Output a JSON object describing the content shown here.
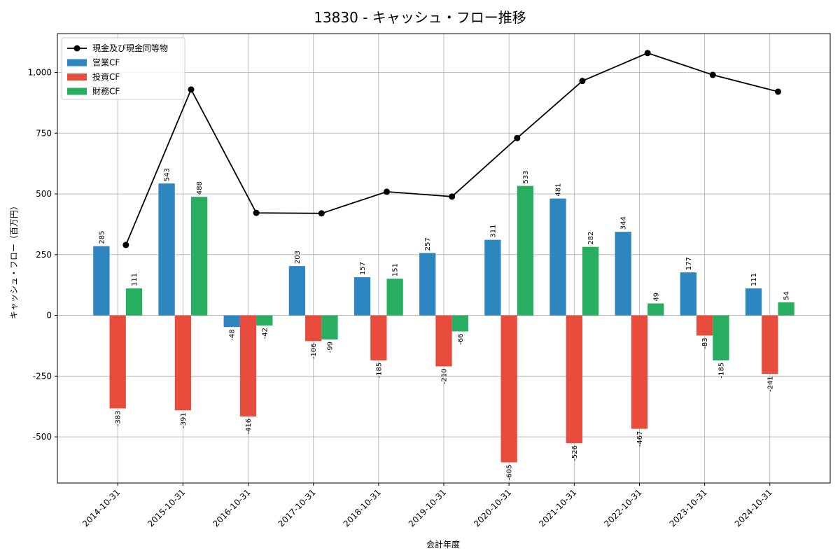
{
  "chart_data": {
    "type": "bar",
    "title": "13830 - キャッシュ・フロー推移",
    "xlabel": "会計年度",
    "ylabel": "キャッシュ・フロー（百万円）",
    "ylim": [
      -690,
      1160
    ],
    "yticks": [
      -500,
      -250,
      0,
      250,
      500,
      750,
      1000
    ],
    "ytick_labels": [
      "-500",
      "-250",
      "0",
      "250",
      "500",
      "750",
      "1,000"
    ],
    "grid": true,
    "legend_position": "top-left",
    "categories": [
      "2014-10-31",
      "2015-10-31",
      "2016-10-31",
      "2017-10-31",
      "2018-10-31",
      "2019-10-31",
      "2020-10-31",
      "2021-10-31",
      "2022-10-31",
      "2023-10-31",
      "2024-10-31"
    ],
    "line": {
      "name": "現金及び現金同等物",
      "values": [
        290,
        930,
        422,
        420,
        509,
        489,
        730,
        965,
        1080,
        990,
        921
      ],
      "color": "#000000"
    },
    "series": [
      {
        "name": "営業CF",
        "color": "#2e86c1",
        "values": [
          285,
          543,
          -48,
          203,
          157,
          257,
          311,
          481,
          344,
          177,
          111
        ],
        "labels": [
          "285",
          "543",
          "-48",
          "203",
          "157",
          "257",
          "311",
          "481",
          "344",
          "177",
          "111"
        ]
      },
      {
        "name": "投資CF",
        "color": "#e74c3c",
        "values": [
          -383,
          -391,
          -416,
          -106,
          -185,
          -210,
          -605,
          -526,
          -467,
          -83,
          -241
        ],
        "labels": [
          "-383",
          "-391",
          "-416",
          "-106",
          "-185",
          "-210",
          "-605",
          "-526",
          "-467",
          "-83",
          "-241"
        ]
      },
      {
        "name": "財務CF",
        "color": "#27ae60",
        "values": [
          111,
          488,
          -42,
          -99,
          151,
          -66,
          533,
          282,
          49,
          -185,
          54
        ],
        "labels": [
          "111",
          "488",
          "-42",
          "-99",
          "151",
          "-66",
          "533",
          "282",
          "49",
          "-185",
          "54"
        ]
      }
    ]
  }
}
